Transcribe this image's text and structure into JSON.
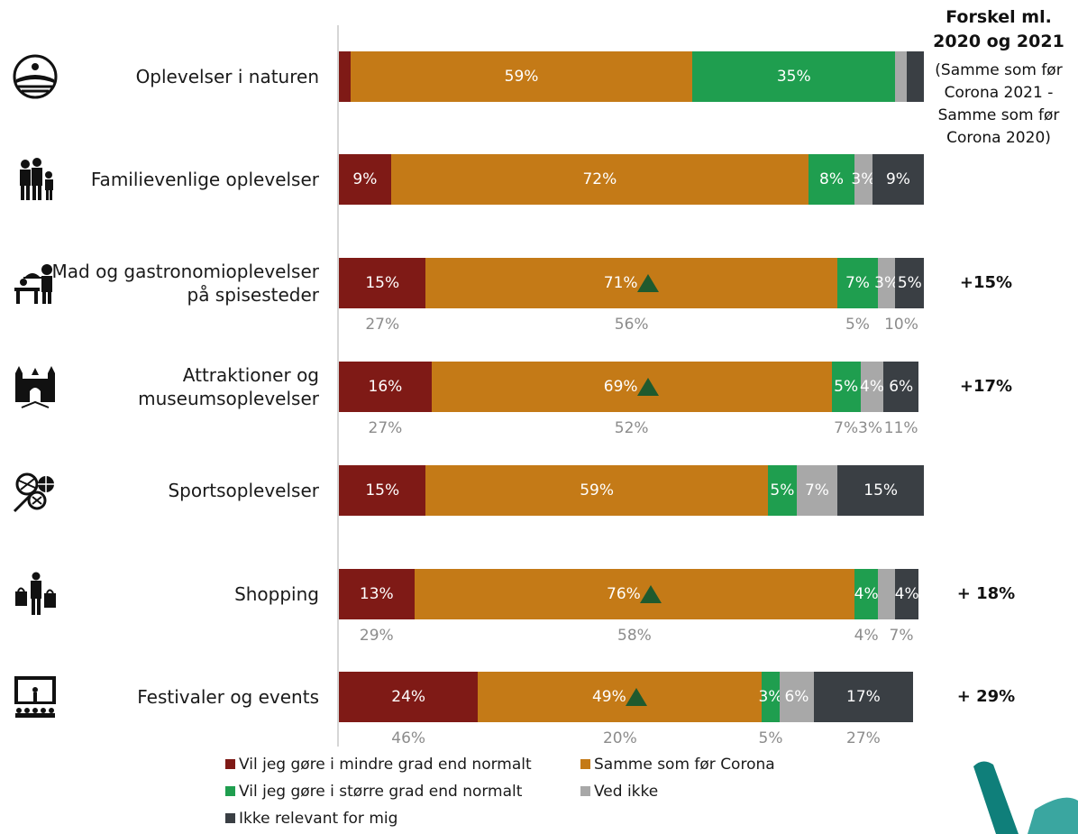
{
  "chart_data": {
    "type": "bar",
    "stacked": true,
    "orientation": "horizontal",
    "percent": true,
    "categories": [
      "Oplevelser i naturen",
      "Familievenlige oplevelser",
      "Mad og gastronomioplevelser på spisesteder",
      "Attraktioner og museumsoplevelser",
      "Sportsoplevelser",
      "Shopping",
      "Festivaler og events"
    ],
    "series": [
      {
        "name": "Vil jeg gøre i mindre grad end normalt",
        "color": "#7f1a16",
        "values": [
          2,
          9,
          15,
          16,
          15,
          13,
          24
        ],
        "labels": [
          "",
          "9%",
          "15%",
          "16%",
          "15%",
          "13%",
          "24%"
        ],
        "prev_labels": [
          "",
          "",
          "27%",
          "27%",
          "",
          "29%",
          "46%"
        ]
      },
      {
        "name": "Samme som før Corona",
        "color": "#c47a17",
        "values": [
          59,
          72,
          71,
          69,
          59,
          76,
          49
        ],
        "labels": [
          "59%",
          "72%",
          "71%",
          "69%",
          "59%",
          "76%",
          "49%"
        ],
        "prev_labels": [
          "",
          "",
          "56%",
          "52%",
          "",
          "58%",
          "20%"
        ],
        "up_markers": [
          false,
          false,
          true,
          true,
          false,
          true,
          true
        ]
      },
      {
        "name": "Vil jeg gøre i større grad end normalt",
        "color": "#1f9e4f",
        "values": [
          35,
          8,
          7,
          5,
          5,
          4,
          3
        ],
        "labels": [
          "35%",
          "8%",
          "7%",
          "5%",
          "5%",
          "4%",
          "3%"
        ],
        "prev_labels": [
          "",
          "",
          "5%",
          "7%",
          "",
          "4%",
          "5%"
        ]
      },
      {
        "name": "Ved ikke",
        "color": "#a8a8a8",
        "values": [
          2,
          3,
          3,
          4,
          7,
          3,
          6
        ],
        "labels": [
          "",
          "3%",
          "3%",
          "4%",
          "7%",
          "",
          "6%"
        ],
        "prev_labels": [
          "",
          "",
          "",
          "3%",
          "",
          "",
          ""
        ]
      },
      {
        "name": "Ikke relevant for mig",
        "color": "#3a3f44",
        "values": [
          3,
          9,
          5,
          6,
          15,
          4,
          17
        ],
        "labels": [
          "",
          "9%",
          "5%",
          "6%",
          "15%",
          "4%",
          "17%"
        ],
        "prev_labels": [
          "",
          "",
          "10%",
          "11%",
          "",
          "7%",
          "27%"
        ]
      }
    ],
    "xlim": [
      0,
      100
    ],
    "legend_position": "bottom"
  },
  "differences": {
    "title": "Forskel ml. 2020 og 2021",
    "subtitle": "(Samme som før Corona 2021 - Samme som før Corona 2020)",
    "values": [
      "",
      "",
      "+15%",
      "+17%",
      "",
      "+ 18%",
      "+ 29%"
    ]
  },
  "icons": [
    "landscape-icon",
    "family-icon",
    "restaurant-icon",
    "castle-icon",
    "sports-balls-icon",
    "shopping-icon",
    "concert-stage-icon"
  ]
}
